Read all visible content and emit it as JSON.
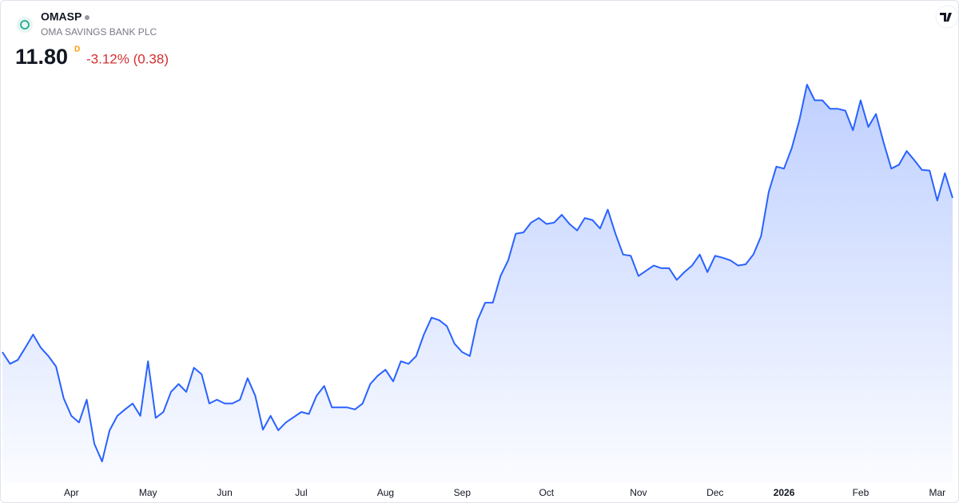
{
  "chart_data": {
    "type": "area",
    "symbol": "OMASP",
    "title": "OMA SAVINGS BANK PLC",
    "price": "11.80",
    "price_suffix": "D",
    "change": "-3.12% (0.38)",
    "color": "#2962ff",
    "categories": [
      null,
      null,
      null,
      null,
      null,
      null,
      null,
      null,
      null,
      "Apr",
      null,
      null,
      null,
      null,
      null,
      null,
      null,
      null,
      null,
      "May",
      null,
      null,
      null,
      null,
      null,
      null,
      null,
      null,
      null,
      "Jun",
      null,
      null,
      null,
      null,
      null,
      null,
      null,
      null,
      null,
      "Jul",
      null,
      null,
      null,
      null,
      null,
      null,
      null,
      null,
      null,
      null,
      "Aug",
      null,
      null,
      null,
      null,
      null,
      null,
      null,
      null,
      null,
      "Sep",
      null,
      null,
      null,
      null,
      null,
      null,
      null,
      null,
      null,
      null,
      "Oct",
      null,
      null,
      null,
      null,
      null,
      null,
      null,
      null,
      null,
      null,
      null,
      "Nov",
      null,
      null,
      null,
      null,
      null,
      null,
      null,
      null,
      null,
      "Dec",
      null,
      null,
      null,
      null,
      null,
      null,
      null,
      null,
      "2026",
      null,
      null,
      null,
      null,
      null,
      null,
      null,
      null,
      null,
      "Feb",
      null,
      null,
      null,
      null,
      null,
      null,
      null,
      null,
      null,
      "Mar",
      null,
      null
    ],
    "values": [
      9.43,
      9.25,
      9.31,
      9.5,
      9.7,
      9.5,
      9.37,
      9.21,
      8.72,
      8.45,
      8.35,
      8.7,
      8.02,
      7.75,
      8.23,
      8.45,
      8.55,
      8.64,
      8.45,
      9.29,
      8.42,
      8.51,
      8.82,
      8.94,
      8.82,
      9.19,
      9.09,
      8.64,
      8.7,
      8.64,
      8.64,
      8.7,
      9.03,
      8.76,
      8.24,
      8.45,
      8.23,
      8.35,
      8.43,
      8.51,
      8.48,
      8.76,
      8.91,
      8.58,
      8.58,
      8.58,
      8.55,
      8.64,
      8.94,
      9.07,
      9.16,
      8.98,
      9.29,
      9.25,
      9.37,
      9.7,
      9.96,
      9.92,
      9.83,
      9.56,
      9.43,
      9.37,
      9.92,
      10.19,
      10.19,
      10.6,
      10.84,
      11.25,
      11.27,
      11.42,
      11.49,
      11.4,
      11.42,
      11.54,
      11.4,
      11.3,
      11.49,
      11.46,
      11.33,
      11.62,
      11.25,
      10.93,
      10.91,
      10.6,
      10.68,
      10.76,
      10.72,
      10.72,
      10.54,
      10.66,
      10.76,
      10.93,
      10.66,
      10.91,
      10.88,
      10.84,
      10.76,
      10.78,
      10.93,
      11.21,
      11.89,
      12.28,
      12.25,
      12.56,
      12.99,
      13.54,
      13.3,
      13.3,
      13.17,
      13.17,
      13.14,
      12.84,
      13.3,
      12.89,
      13.09,
      12.65,
      12.25,
      12.31,
      12.52,
      12.38,
      12.23,
      12.22,
      11.76,
      12.18,
      11.8
    ]
  }
}
